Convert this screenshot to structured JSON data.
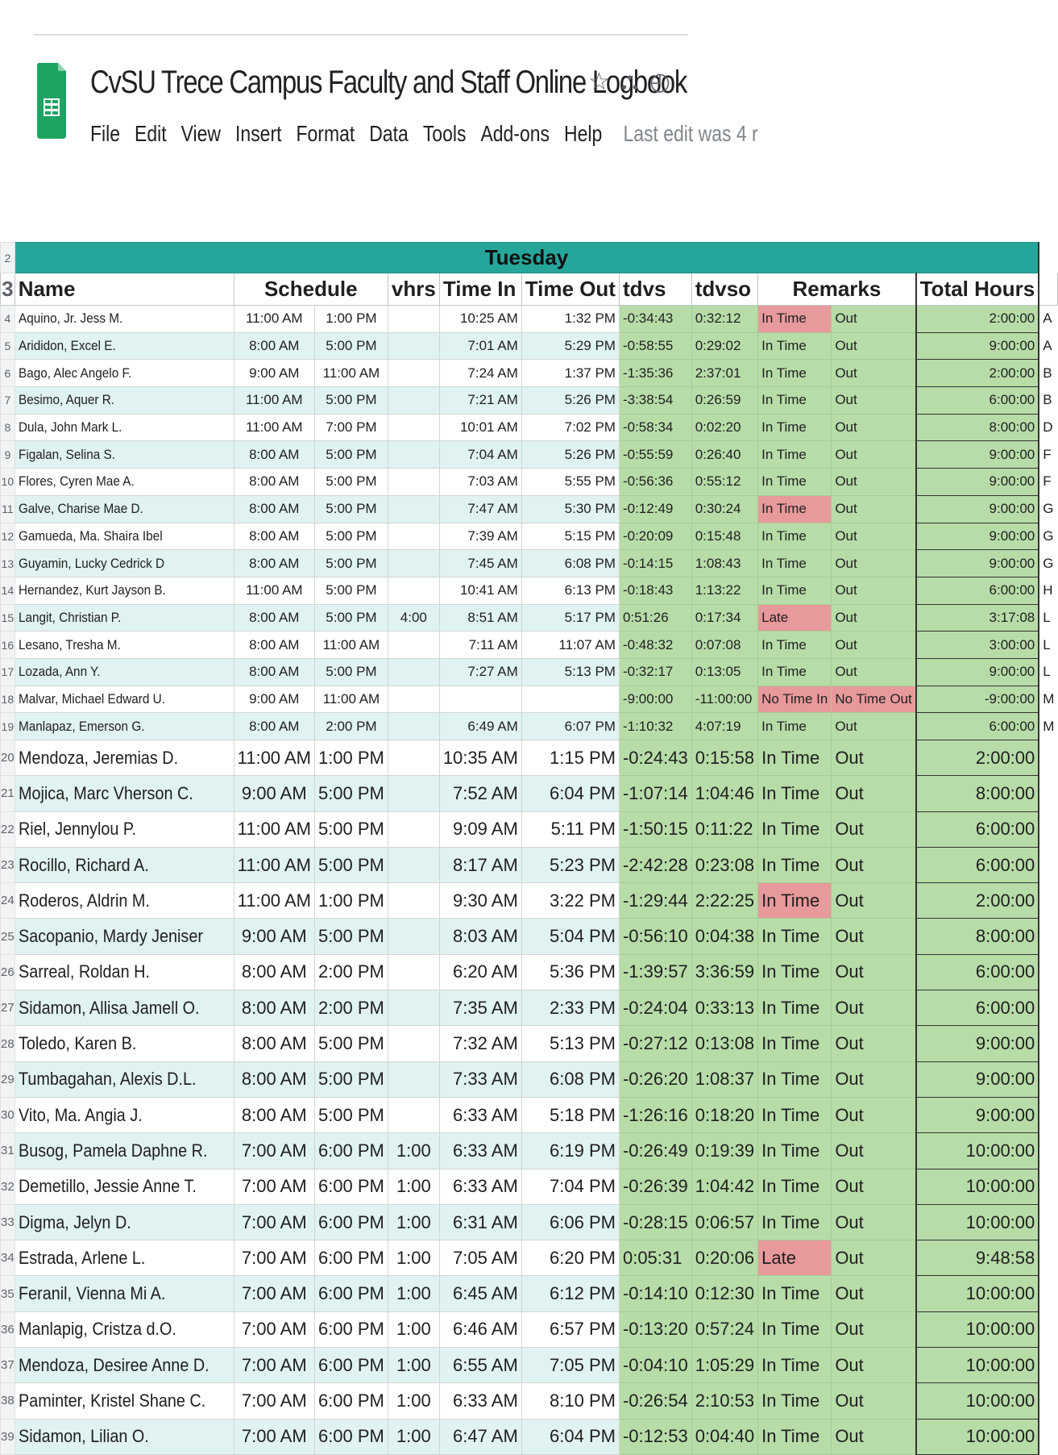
{
  "doc": {
    "title": "CvSU Trece Campus Faculty and Staff Online Logbook",
    "last_edit": "Last edit was 4 r",
    "menu": [
      "File",
      "Edit",
      "View",
      "Insert",
      "Format",
      "Data",
      "Tools",
      "Add-ons",
      "Help"
    ]
  },
  "sheet": {
    "day_row_number": "2",
    "day": "Tuesday",
    "header_row_number": "3",
    "headers": {
      "name": "Name",
      "schedule": "Schedule",
      "vhrs": "vhrs",
      "time_in": "Time In",
      "time_out": "Time Out",
      "tdvs": "tdvs",
      "tdvso": "tdvso",
      "remarks": "Remarks",
      "total_hours": "Total Hours"
    },
    "rows": [
      {
        "n": "4",
        "name": "Aquino, Jr. Jess M.",
        "s1": "11:00 AM",
        "s2": "1:00 PM",
        "vhrs": "",
        "tin": "10:25 AM",
        "tout": "1:32 PM",
        "tdvs": "-0:34:43",
        "tdvso": "0:32:12",
        "r1": "In Time",
        "r2": "Out",
        "tot": "2:00:00",
        "edge": "A",
        "red": true
      },
      {
        "n": "5",
        "name": "Arididon, Excel E.",
        "s1": "8:00 AM",
        "s2": "5:00 PM",
        "vhrs": "",
        "tin": "7:01 AM",
        "tout": "5:29 PM",
        "tdvs": "-0:58:55",
        "tdvso": "0:29:02",
        "r1": "In Time",
        "r2": "Out",
        "tot": "9:00:00",
        "edge": "A",
        "red": false
      },
      {
        "n": "6",
        "name": "Bago, Alec Angelo F.",
        "s1": "9:00 AM",
        "s2": "11:00 AM",
        "vhrs": "",
        "tin": "7:24 AM",
        "tout": "1:37 PM",
        "tdvs": "-1:35:36",
        "tdvso": "2:37:01",
        "r1": "In Time",
        "r2": "Out",
        "tot": "2:00:00",
        "edge": "B",
        "red": false
      },
      {
        "n": "7",
        "name": "Besimo, Aquer R.",
        "s1": "11:00 AM",
        "s2": "5:00 PM",
        "vhrs": "",
        "tin": "7:21 AM",
        "tout": "5:26 PM",
        "tdvs": "-3:38:54",
        "tdvso": "0:26:59",
        "r1": "In Time",
        "r2": "Out",
        "tot": "6:00:00",
        "edge": "B",
        "red": false
      },
      {
        "n": "8",
        "name": "Dula, John Mark L.",
        "s1": "11:00 AM",
        "s2": "7:00 PM",
        "vhrs": "",
        "tin": "10:01 AM",
        "tout": "7:02 PM",
        "tdvs": "-0:58:34",
        "tdvso": "0:02:20",
        "r1": "In Time",
        "r2": "Out",
        "tot": "8:00:00",
        "edge": "D",
        "red": false
      },
      {
        "n": "9",
        "name": "Figalan, Selina S.",
        "s1": "8:00 AM",
        "s2": "5:00 PM",
        "vhrs": "",
        "tin": "7:04 AM",
        "tout": "5:26 PM",
        "tdvs": "-0:55:59",
        "tdvso": "0:26:40",
        "r1": "In Time",
        "r2": "Out",
        "tot": "9:00:00",
        "edge": "F",
        "red": false
      },
      {
        "n": "10",
        "name": "Flores, Cyren Mae A.",
        "s1": "8:00 AM",
        "s2": "5:00 PM",
        "vhrs": "",
        "tin": "7:03 AM",
        "tout": "5:55 PM",
        "tdvs": "-0:56:36",
        "tdvso": "0:55:12",
        "r1": "In Time",
        "r2": "Out",
        "tot": "9:00:00",
        "edge": "F",
        "red": false
      },
      {
        "n": "11",
        "name": "Galve, Charise Mae D.",
        "s1": "8:00 AM",
        "s2": "5:00 PM",
        "vhrs": "",
        "tin": "7:47 AM",
        "tout": "5:30 PM",
        "tdvs": "-0:12:49",
        "tdvso": "0:30:24",
        "r1": "In Time",
        "r2": "Out",
        "tot": "9:00:00",
        "edge": "G",
        "red": true
      },
      {
        "n": "12",
        "name": "Gamueda, Ma. Shaira Ibel",
        "s1": "8:00 AM",
        "s2": "5:00 PM",
        "vhrs": "",
        "tin": "7:39 AM",
        "tout": "5:15 PM",
        "tdvs": "-0:20:09",
        "tdvso": "0:15:48",
        "r1": "In Time",
        "r2": "Out",
        "tot": "9:00:00",
        "edge": "G",
        "red": false
      },
      {
        "n": "13",
        "name": "Guyamin, Lucky Cedrick D",
        "s1": "8:00 AM",
        "s2": "5:00 PM",
        "vhrs": "",
        "tin": "7:45 AM",
        "tout": "6:08 PM",
        "tdvs": "-0:14:15",
        "tdvso": "1:08:43",
        "r1": "In Time",
        "r2": "Out",
        "tot": "9:00:00",
        "edge": "G",
        "red": false
      },
      {
        "n": "14",
        "name": "Hernandez, Kurt Jayson B.",
        "s1": "11:00 AM",
        "s2": "5:00 PM",
        "vhrs": "",
        "tin": "10:41 AM",
        "tout": "6:13 PM",
        "tdvs": "-0:18:43",
        "tdvso": "1:13:22",
        "r1": "In Time",
        "r2": "Out",
        "tot": "6:00:00",
        "edge": "H",
        "red": false
      },
      {
        "n": "15",
        "name": "Langit, Christian P.",
        "s1": "8:00 AM",
        "s2": "5:00 PM",
        "vhrs": "4:00",
        "tin": "8:51 AM",
        "tout": "5:17 PM",
        "tdvs": "0:51:26",
        "tdvso": "0:17:34",
        "r1": "Late",
        "r2": "Out",
        "tot": "3:17:08",
        "edge": "L",
        "red": true
      },
      {
        "n": "16",
        "name": "Lesano, Tresha M.",
        "s1": "8:00 AM",
        "s2": "11:00 AM",
        "vhrs": "",
        "tin": "7:11 AM",
        "tout": "11:07 AM",
        "tdvs": "-0:48:32",
        "tdvso": "0:07:08",
        "r1": "In Time",
        "r2": "Out",
        "tot": "3:00:00",
        "edge": "L",
        "red": false
      },
      {
        "n": "17",
        "name": "Lozada, Ann Y.",
        "s1": "8:00 AM",
        "s2": "5:00 PM",
        "vhrs": "",
        "tin": "7:27 AM",
        "tout": "5:13 PM",
        "tdvs": "-0:32:17",
        "tdvso": "0:13:05",
        "r1": "In Time",
        "r2": "Out",
        "tot": "9:00:00",
        "edge": "L",
        "red": false
      },
      {
        "n": "18",
        "name": "Malvar, Michael Edward U.",
        "s1": "9:00 AM",
        "s2": "11:00 AM",
        "vhrs": "",
        "tin": "",
        "tout": "",
        "tdvs": "-9:00:00",
        "tdvso": "-11:00:00",
        "r1": "No Time In",
        "r2": "No Time Out",
        "tot": "-9:00:00",
        "edge": "M",
        "red": true,
        "red2": true
      },
      {
        "n": "19",
        "name": "Manlapaz, Emerson G.",
        "s1": "8:00 AM",
        "s2": "2:00 PM",
        "vhrs": "",
        "tin": "6:49 AM",
        "tout": "6:07 PM",
        "tdvs": "-1:10:32",
        "tdvso": "4:07:19",
        "r1": "In Time",
        "r2": "Out",
        "tot": "6:00:00",
        "edge": "M",
        "red": false
      },
      {
        "n": "20",
        "name": "Mendoza, Jeremias D.",
        "s1": "11:00 AM",
        "s2": "1:00 PM",
        "vhrs": "",
        "tin": "10:35 AM",
        "tout": "1:15 PM",
        "tdvs": "-0:24:43",
        "tdvso": "0:15:58",
        "r1": "In Time",
        "r2": "Out",
        "tot": "2:00:00",
        "edge": "",
        "red": false
      },
      {
        "n": "21",
        "name": "Mojica, Marc Vherson C.",
        "s1": "9:00 AM",
        "s2": "5:00 PM",
        "vhrs": "",
        "tin": "7:52 AM",
        "tout": "6:04 PM",
        "tdvs": "-1:07:14",
        "tdvso": "1:04:46",
        "r1": "In Time",
        "r2": "Out",
        "tot": "8:00:00",
        "edge": "",
        "red": false
      },
      {
        "n": "22",
        "name": "Riel, Jennylou P.",
        "s1": "11:00 AM",
        "s2": "5:00 PM",
        "vhrs": "",
        "tin": "9:09 AM",
        "tout": "5:11 PM",
        "tdvs": "-1:50:15",
        "tdvso": "0:11:22",
        "r1": "In Time",
        "r2": "Out",
        "tot": "6:00:00",
        "edge": "",
        "red": false
      },
      {
        "n": "23",
        "name": "Rocillo, Richard A.",
        "s1": "11:00 AM",
        "s2": "5:00 PM",
        "vhrs": "",
        "tin": "8:17 AM",
        "tout": "5:23 PM",
        "tdvs": "-2:42:28",
        "tdvso": "0:23:08",
        "r1": "In Time",
        "r2": "Out",
        "tot": "6:00:00",
        "edge": "",
        "red": false
      },
      {
        "n": "24",
        "name": "Roderos, Aldrin M.",
        "s1": "11:00 AM",
        "s2": "1:00 PM",
        "vhrs": "",
        "tin": "9:30 AM",
        "tout": "3:22 PM",
        "tdvs": "-1:29:44",
        "tdvso": "2:22:25",
        "r1": "In Time",
        "r2": "Out",
        "tot": "2:00:00",
        "edge": "",
        "red": true
      },
      {
        "n": "25",
        "name": "Sacopanio, Mardy Jeniser",
        "s1": "9:00 AM",
        "s2": "5:00 PM",
        "vhrs": "",
        "tin": "8:03 AM",
        "tout": "5:04 PM",
        "tdvs": "-0:56:10",
        "tdvso": "0:04:38",
        "r1": "In Time",
        "r2": "Out",
        "tot": "8:00:00",
        "edge": "",
        "red": false
      },
      {
        "n": "26",
        "name": "Sarreal, Roldan H.",
        "s1": "8:00 AM",
        "s2": "2:00 PM",
        "vhrs": "",
        "tin": "6:20 AM",
        "tout": "5:36 PM",
        "tdvs": "-1:39:57",
        "tdvso": "3:36:59",
        "r1": "In Time",
        "r2": "Out",
        "tot": "6:00:00",
        "edge": "",
        "red": false
      },
      {
        "n": "27",
        "name": "Sidamon, Allisa Jamell O.",
        "s1": "8:00 AM",
        "s2": "2:00 PM",
        "vhrs": "",
        "tin": "7:35 AM",
        "tout": "2:33 PM",
        "tdvs": "-0:24:04",
        "tdvso": "0:33:13",
        "r1": "In Time",
        "r2": "Out",
        "tot": "6:00:00",
        "edge": "",
        "red": false
      },
      {
        "n": "28",
        "name": "Toledo, Karen B.",
        "s1": "8:00 AM",
        "s2": "5:00 PM",
        "vhrs": "",
        "tin": "7:32 AM",
        "tout": "5:13 PM",
        "tdvs": "-0:27:12",
        "tdvso": "0:13:08",
        "r1": "In Time",
        "r2": "Out",
        "tot": "9:00:00",
        "edge": "",
        "red": false
      },
      {
        "n": "29",
        "name": "Tumbagahan, Alexis D.L.",
        "s1": "8:00 AM",
        "s2": "5:00 PM",
        "vhrs": "",
        "tin": "7:33 AM",
        "tout": "6:08 PM",
        "tdvs": "-0:26:20",
        "tdvso": "1:08:37",
        "r1": "In Time",
        "r2": "Out",
        "tot": "9:00:00",
        "edge": "",
        "red": false
      },
      {
        "n": "30",
        "name": "Vito, Ma. Angia J.",
        "s1": "8:00 AM",
        "s2": "5:00 PM",
        "vhrs": "",
        "tin": "6:33 AM",
        "tout": "5:18 PM",
        "tdvs": "-1:26:16",
        "tdvso": "0:18:20",
        "r1": "In Time",
        "r2": "Out",
        "tot": "9:00:00",
        "edge": "",
        "red": false
      },
      {
        "n": "31",
        "name": "Busog, Pamela Daphne R.",
        "s1": "7:00 AM",
        "s2": "6:00 PM",
        "vhrs": "1:00",
        "tin": "6:33 AM",
        "tout": "6:19 PM",
        "tdvs": "-0:26:49",
        "tdvso": "0:19:39",
        "r1": "In Time",
        "r2": "Out",
        "tot": "10:00:00",
        "edge": "",
        "red": false
      },
      {
        "n": "32",
        "name": "Demetillo, Jessie Anne T.",
        "s1": "7:00 AM",
        "s2": "6:00 PM",
        "vhrs": "1:00",
        "tin": "6:33 AM",
        "tout": "7:04 PM",
        "tdvs": "-0:26:39",
        "tdvso": "1:04:42",
        "r1": "In Time",
        "r2": "Out",
        "tot": "10:00:00",
        "edge": "",
        "red": false
      },
      {
        "n": "33",
        "name": "Digma, Jelyn D.",
        "s1": "7:00 AM",
        "s2": "6:00 PM",
        "vhrs": "1:00",
        "tin": "6:31 AM",
        "tout": "6:06 PM",
        "tdvs": "-0:28:15",
        "tdvso": "0:06:57",
        "r1": "In Time",
        "r2": "Out",
        "tot": "10:00:00",
        "edge": "",
        "red": false
      },
      {
        "n": "34",
        "name": "Estrada, Arlene L.",
        "s1": "7:00 AM",
        "s2": "6:00 PM",
        "vhrs": "1:00",
        "tin": "7:05 AM",
        "tout": "6:20 PM",
        "tdvs": "0:05:31",
        "tdvso": "0:20:06",
        "r1": "Late",
        "r2": "Out",
        "tot": "9:48:58",
        "edge": "",
        "red": true
      },
      {
        "n": "35",
        "name": "Feranil, Vienna Mi A.",
        "s1": "7:00 AM",
        "s2": "6:00 PM",
        "vhrs": "1:00",
        "tin": "6:45 AM",
        "tout": "6:12 PM",
        "tdvs": "-0:14:10",
        "tdvso": "0:12:30",
        "r1": "In Time",
        "r2": "Out",
        "tot": "10:00:00",
        "edge": "",
        "red": false
      },
      {
        "n": "36",
        "name": "Manlapig, Cristza d.O.",
        "s1": "7:00 AM",
        "s2": "6:00 PM",
        "vhrs": "1:00",
        "tin": "6:46 AM",
        "tout": "6:57 PM",
        "tdvs": "-0:13:20",
        "tdvso": "0:57:24",
        "r1": "In Time",
        "r2": "Out",
        "tot": "10:00:00",
        "edge": "",
        "red": false
      },
      {
        "n": "37",
        "name": "Mendoza, Desiree Anne D.",
        "s1": "7:00 AM",
        "s2": "6:00 PM",
        "vhrs": "1:00",
        "tin": "6:55 AM",
        "tout": "7:05 PM",
        "tdvs": "-0:04:10",
        "tdvso": "1:05:29",
        "r1": "In Time",
        "r2": "Out",
        "tot": "10:00:00",
        "edge": "",
        "red": false
      },
      {
        "n": "38",
        "name": "Paminter, Kristel Shane C.",
        "s1": "7:00 AM",
        "s2": "6:00 PM",
        "vhrs": "1:00",
        "tin": "6:33 AM",
        "tout": "8:10 PM",
        "tdvs": "-0:26:54",
        "tdvso": "2:10:53",
        "r1": "In Time",
        "r2": "Out",
        "tot": "10:00:00",
        "edge": "",
        "red": false
      },
      {
        "n": "39",
        "name": "Sidamon, Lilian O.",
        "s1": "7:00 AM",
        "s2": "6:00 PM",
        "vhrs": "1:00",
        "tin": "6:47 AM",
        "tout": "6:04 PM",
        "tdvs": "-0:12:53",
        "tdvso": "0:04:40",
        "r1": "In Time",
        "r2": "Out",
        "tot": "10:00:00",
        "edge": "",
        "red": false
      }
    ]
  }
}
